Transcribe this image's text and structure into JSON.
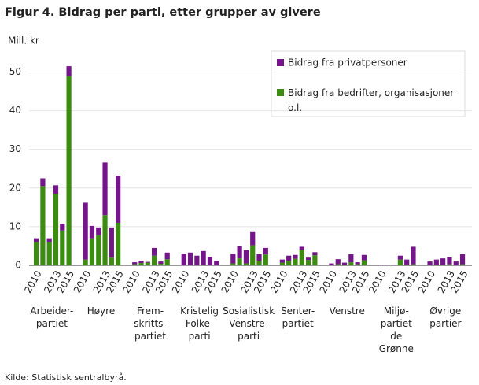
{
  "chart_data": {
    "type": "bar",
    "title": "Figur 4. Bidrag per parti, etter grupper av givere",
    "y_label": "Mill. kr",
    "source": "Kilde: Statistisk sentralbyrå.",
    "stacked": true,
    "groups": [
      "Arbeider-\npartiet",
      "Høyre",
      "Frem-\nskritts-\npartiet",
      "Kristelig\nFolke-\nparti",
      "Sosialistisk\nVenstre-\nparti",
      "Senter-\npartiet",
      "Venstre",
      "Miljø-\npartiet\nde\nGrønne",
      "Øvrige\npartier"
    ],
    "categories": [
      "2010",
      null,
      null,
      "2013",
      null,
      "2015"
    ],
    "series": [
      {
        "name": "Bidrag fra bedrifter, organisasjoner o.l.",
        "color": "#3d8c12",
        "values": [
          [
            6,
            20.5,
            6,
            18.5,
            9,
            49
          ],
          [
            1.5,
            7,
            7.8,
            13,
            2,
            11
          ],
          [
            0.3,
            0.6,
            0.7,
            2.5,
            0.4,
            1.6
          ],
          [
            0,
            0.1,
            0.1,
            0.2,
            0.1,
            0.1
          ],
          [
            0.5,
            1.8,
            0.5,
            5.2,
            1.2,
            2.8
          ],
          [
            0.7,
            1.2,
            1.7,
            4,
            1.4,
            2.6
          ],
          [
            0.1,
            0.3,
            0.2,
            0.8,
            0.3,
            1.3
          ],
          [
            0,
            0,
            0,
            1.5,
            0.2,
            0.3
          ],
          [
            0.1,
            0.2,
            0.2,
            0.3,
            0.1,
            0.3
          ]
        ]
      },
      {
        "name": "Bidrag fra privatpersoner",
        "color": "#74168a",
        "values": [
          [
            1,
            2,
            1,
            2.2,
            1.8,
            2.5
          ],
          [
            14.7,
            3.2,
            2,
            13.6,
            7.8,
            12.2
          ],
          [
            0.5,
            0.6,
            0.2,
            2,
            0.6,
            1.7
          ],
          [
            3,
            3.2,
            2.4,
            3.5,
            2.1,
            1.1
          ],
          [
            2.5,
            3.2,
            3.4,
            3.4,
            1.7,
            1.7
          ],
          [
            0.8,
            1.3,
            1,
            0.8,
            0.6,
            0.8
          ],
          [
            0.4,
            1.3,
            0.5,
            2.1,
            0.5,
            1.4
          ],
          [
            0.2,
            0.2,
            0.2,
            1,
            1.3,
            4.5
          ],
          [
            0.9,
            1.3,
            1.6,
            1.8,
            0.9,
            2.6
          ]
        ]
      }
    ],
    "ylim": [
      0,
      56
    ],
    "yticks": [
      0,
      10,
      20,
      30,
      40,
      50
    ],
    "grid": true
  }
}
